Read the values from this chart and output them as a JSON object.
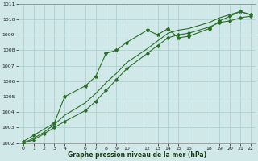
{
  "title": "Graphe pression niveau de la mer (hPa)",
  "background_color": "#d0e8e8",
  "grid_color": "#b0d0d0",
  "line_color": "#2a6e2a",
  "xlim": [
    -0.5,
    22.5
  ],
  "ylim": [
    1002,
    1011
  ],
  "xticks": [
    0,
    1,
    2,
    3,
    4,
    6,
    7,
    8,
    9,
    10,
    12,
    13,
    14,
    15,
    16,
    18,
    19,
    20,
    21,
    22
  ],
  "yticks": [
    1002,
    1003,
    1004,
    1005,
    1006,
    1007,
    1008,
    1009,
    1010,
    1011
  ],
  "series1_x": [
    0,
    1,
    3,
    4,
    6,
    7,
    8,
    9,
    10,
    12,
    13,
    14,
    15,
    16,
    18,
    19,
    20,
    21,
    22
  ],
  "series1_y": [
    1002.1,
    1002.5,
    1003.3,
    1005.0,
    1005.7,
    1006.3,
    1007.8,
    1008.0,
    1008.5,
    1009.3,
    1009.0,
    1009.4,
    1008.8,
    1008.9,
    1009.4,
    1009.9,
    1010.2,
    1010.5,
    1010.3
  ],
  "series2_x": [
    0,
    1,
    2,
    3,
    4,
    6,
    7,
    8,
    9,
    10,
    12,
    13,
    14,
    15,
    16,
    18,
    19,
    20,
    21,
    22
  ],
  "series2_y": [
    1002.0,
    1002.2,
    1002.6,
    1003.0,
    1003.4,
    1004.1,
    1004.7,
    1005.4,
    1006.1,
    1006.8,
    1007.8,
    1008.3,
    1008.8,
    1009.0,
    1009.1,
    1009.5,
    1009.8,
    1009.9,
    1010.1,
    1010.2
  ],
  "series3_x": [
    0,
    1,
    2,
    3,
    4,
    6,
    7,
    8,
    9,
    10,
    12,
    13,
    14,
    15,
    16,
    18,
    19,
    20,
    21,
    22
  ],
  "series3_y": [
    1002.0,
    1002.3,
    1002.7,
    1003.2,
    1003.8,
    1004.6,
    1005.2,
    1005.9,
    1006.5,
    1007.2,
    1008.1,
    1008.6,
    1009.1,
    1009.3,
    1009.4,
    1009.8,
    1010.1,
    1010.3,
    1010.5,
    1010.3
  ]
}
